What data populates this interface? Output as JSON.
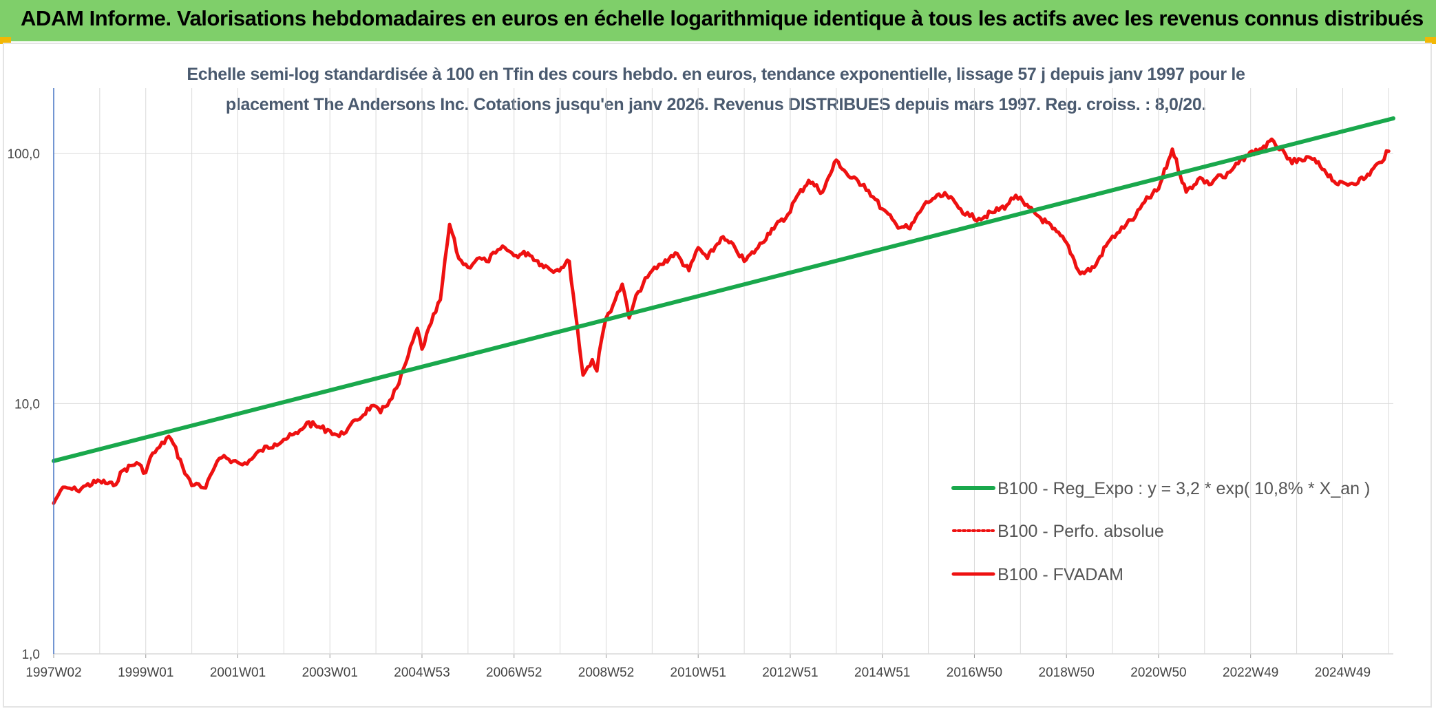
{
  "banner": {
    "title": "ADAM Informe. Valorisations hebdomadaires en euros en échelle logarithmique identique à tous les actifs avec les revenus connus distribués"
  },
  "colors": {
    "banner_bg": "#7fcf6a",
    "corner": "#f2b705",
    "trend": "#19a84c",
    "fvadam": "#ee1111",
    "perfo": "#ee1111",
    "grid": "#d9d9d9",
    "axis": "#4472c4"
  },
  "chart_data": {
    "type": "line",
    "title_line1": "Echelle semi-log standardisée à 100 en Tfin des cours hebdo. en euros, tendance exponentielle, lissage 57 j depuis janv 1997 pour le",
    "title_line2": "placement The Andersons Inc. Cotations jusqu'en janv 2026. Revenus DISTRIBUES depuis mars 1997. Reg. croiss. : 8,0/20.",
    "y_scale": "log",
    "ylim": [
      1,
      180
    ],
    "xlim": [
      1997.0,
      2026.1
    ],
    "y_tick_labels": [
      "1,0",
      "10,0",
      "100,0"
    ],
    "y_tick_values": [
      1,
      10,
      100
    ],
    "x_tick_labels": [
      "1997W02",
      "1999W01",
      "2001W01",
      "2003W01",
      "2004W53",
      "2006W52",
      "2008W52",
      "2010W51",
      "2012W51",
      "2014W51",
      "2016W50",
      "2018W50",
      "2020W50",
      "2022W49",
      "2024W49"
    ],
    "x_tick_values": [
      1997.0,
      1999.0,
      2001.0,
      2003.0,
      2005.0,
      2007.0,
      2009.0,
      2011.0,
      2013.0,
      2015.0,
      2017.0,
      2019.0,
      2021.0,
      2023.0,
      2025.0
    ],
    "grid": true,
    "legend_position": "bottom-right",
    "series": [
      {
        "name": "B100 - Reg_Expo : y = 3,2 * exp( 10,8% *  X_an )",
        "style": "solid-green",
        "x": [
          1997.0,
          2026.1
        ],
        "y": [
          5.9,
          138
        ]
      },
      {
        "name": "B100 - Perfo. absolue",
        "style": "dotted-red",
        "x": [],
        "y": []
      },
      {
        "name": "B100 - FVADAM",
        "style": "solid-red",
        "x": [
          1997.0,
          1997.15,
          1997.3,
          1997.5,
          1997.7,
          1998.0,
          1998.3,
          1998.5,
          1998.8,
          1999.0,
          1999.1,
          1999.3,
          1999.5,
          1999.6,
          1999.8,
          2000.0,
          2000.1,
          2000.3,
          2000.5,
          2000.7,
          2000.9,
          2001.1,
          2001.3,
          2001.5,
          2001.8,
          2002.0,
          2002.3,
          2002.5,
          2002.8,
          2003.0,
          2003.2,
          2003.4,
          2003.6,
          2003.9,
          2004.1,
          2004.3,
          2004.5,
          2004.7,
          2004.9,
          2005.0,
          2005.2,
          2005.4,
          2005.6,
          2005.8,
          2006.0,
          2006.2,
          2006.4,
          2006.6,
          2006.8,
          2007.0,
          2007.3,
          2007.6,
          2007.9,
          2008.2,
          2008.5,
          2008.7,
          2008.8,
          2008.9,
          2009.0,
          2009.2,
          2009.35,
          2009.5,
          2009.7,
          2009.9,
          2010.0,
          2010.2,
          2010.5,
          2010.8,
          2011.0,
          2011.2,
          2011.5,
          2011.8,
          2012.0,
          2012.3,
          2012.6,
          2012.9,
          2013.1,
          2013.4,
          2013.7,
          2014.0,
          2014.3,
          2014.6,
          2014.8,
          2015.0,
          2015.3,
          2015.6,
          2015.9,
          2016.1,
          2016.4,
          2016.7,
          2016.9,
          2017.1,
          2017.4,
          2017.7,
          2017.9,
          2018.1,
          2018.4,
          2018.7,
          2019.0,
          2019.3,
          2019.6,
          2019.9,
          2020.1,
          2020.3,
          2020.5,
          2020.7,
          2021.0,
          2021.3,
          2021.6,
          2021.9,
          2022.1,
          2022.3,
          2022.45,
          2022.6,
          2022.9,
          2023.2,
          2023.5,
          2023.8,
          2024.0,
          2024.3,
          2024.6,
          2024.9,
          2025.2,
          2025.5,
          2025.8,
          2026.0
        ],
        "y": [
          4.0,
          4.5,
          4.6,
          4.5,
          4.7,
          4.9,
          4.7,
          5.4,
          5.8,
          5.3,
          6.1,
          6.7,
          7.4,
          6.9,
          5.6,
          4.7,
          4.8,
          4.6,
          5.6,
          6.2,
          5.9,
          5.7,
          6.0,
          6.5,
          6.9,
          7.2,
          7.6,
          8.4,
          8.0,
          7.8,
          7.4,
          8.0,
          8.6,
          9.8,
          9.2,
          10.3,
          12.0,
          15.5,
          20.0,
          16.5,
          21.0,
          26.0,
          52.0,
          38.0,
          35.0,
          38.0,
          37.0,
          40.0,
          42.0,
          39.0,
          40.0,
          36.0,
          34.0,
          37.0,
          13.0,
          15.0,
          13.5,
          18.0,
          22.0,
          26.0,
          30.0,
          22.0,
          28.0,
          32.0,
          34.0,
          36.0,
          40.0,
          34.0,
          42.0,
          38.0,
          46.0,
          42.0,
          37.0,
          42.0,
          50.0,
          55.0,
          65.0,
          78.0,
          70.0,
          94.0,
          80.0,
          75.0,
          67.0,
          60.0,
          52.0,
          50.0,
          62.0,
          66.0,
          68.0,
          60.0,
          56.0,
          55.0,
          58.0,
          62.0,
          68.0,
          62.0,
          56.0,
          50.0,
          44.0,
          33.0,
          35.0,
          44.0,
          48.0,
          52.0,
          56.0,
          64.0,
          72.0,
          104.0,
          70.0,
          80.0,
          75.0,
          82.0,
          80.0,
          86.0,
          98.0,
          104.0,
          112.0,
          95.0,
          92.0,
          96.0,
          86.0,
          75.0,
          76.0,
          80.0,
          92.0,
          102.0
        ]
      }
    ]
  }
}
